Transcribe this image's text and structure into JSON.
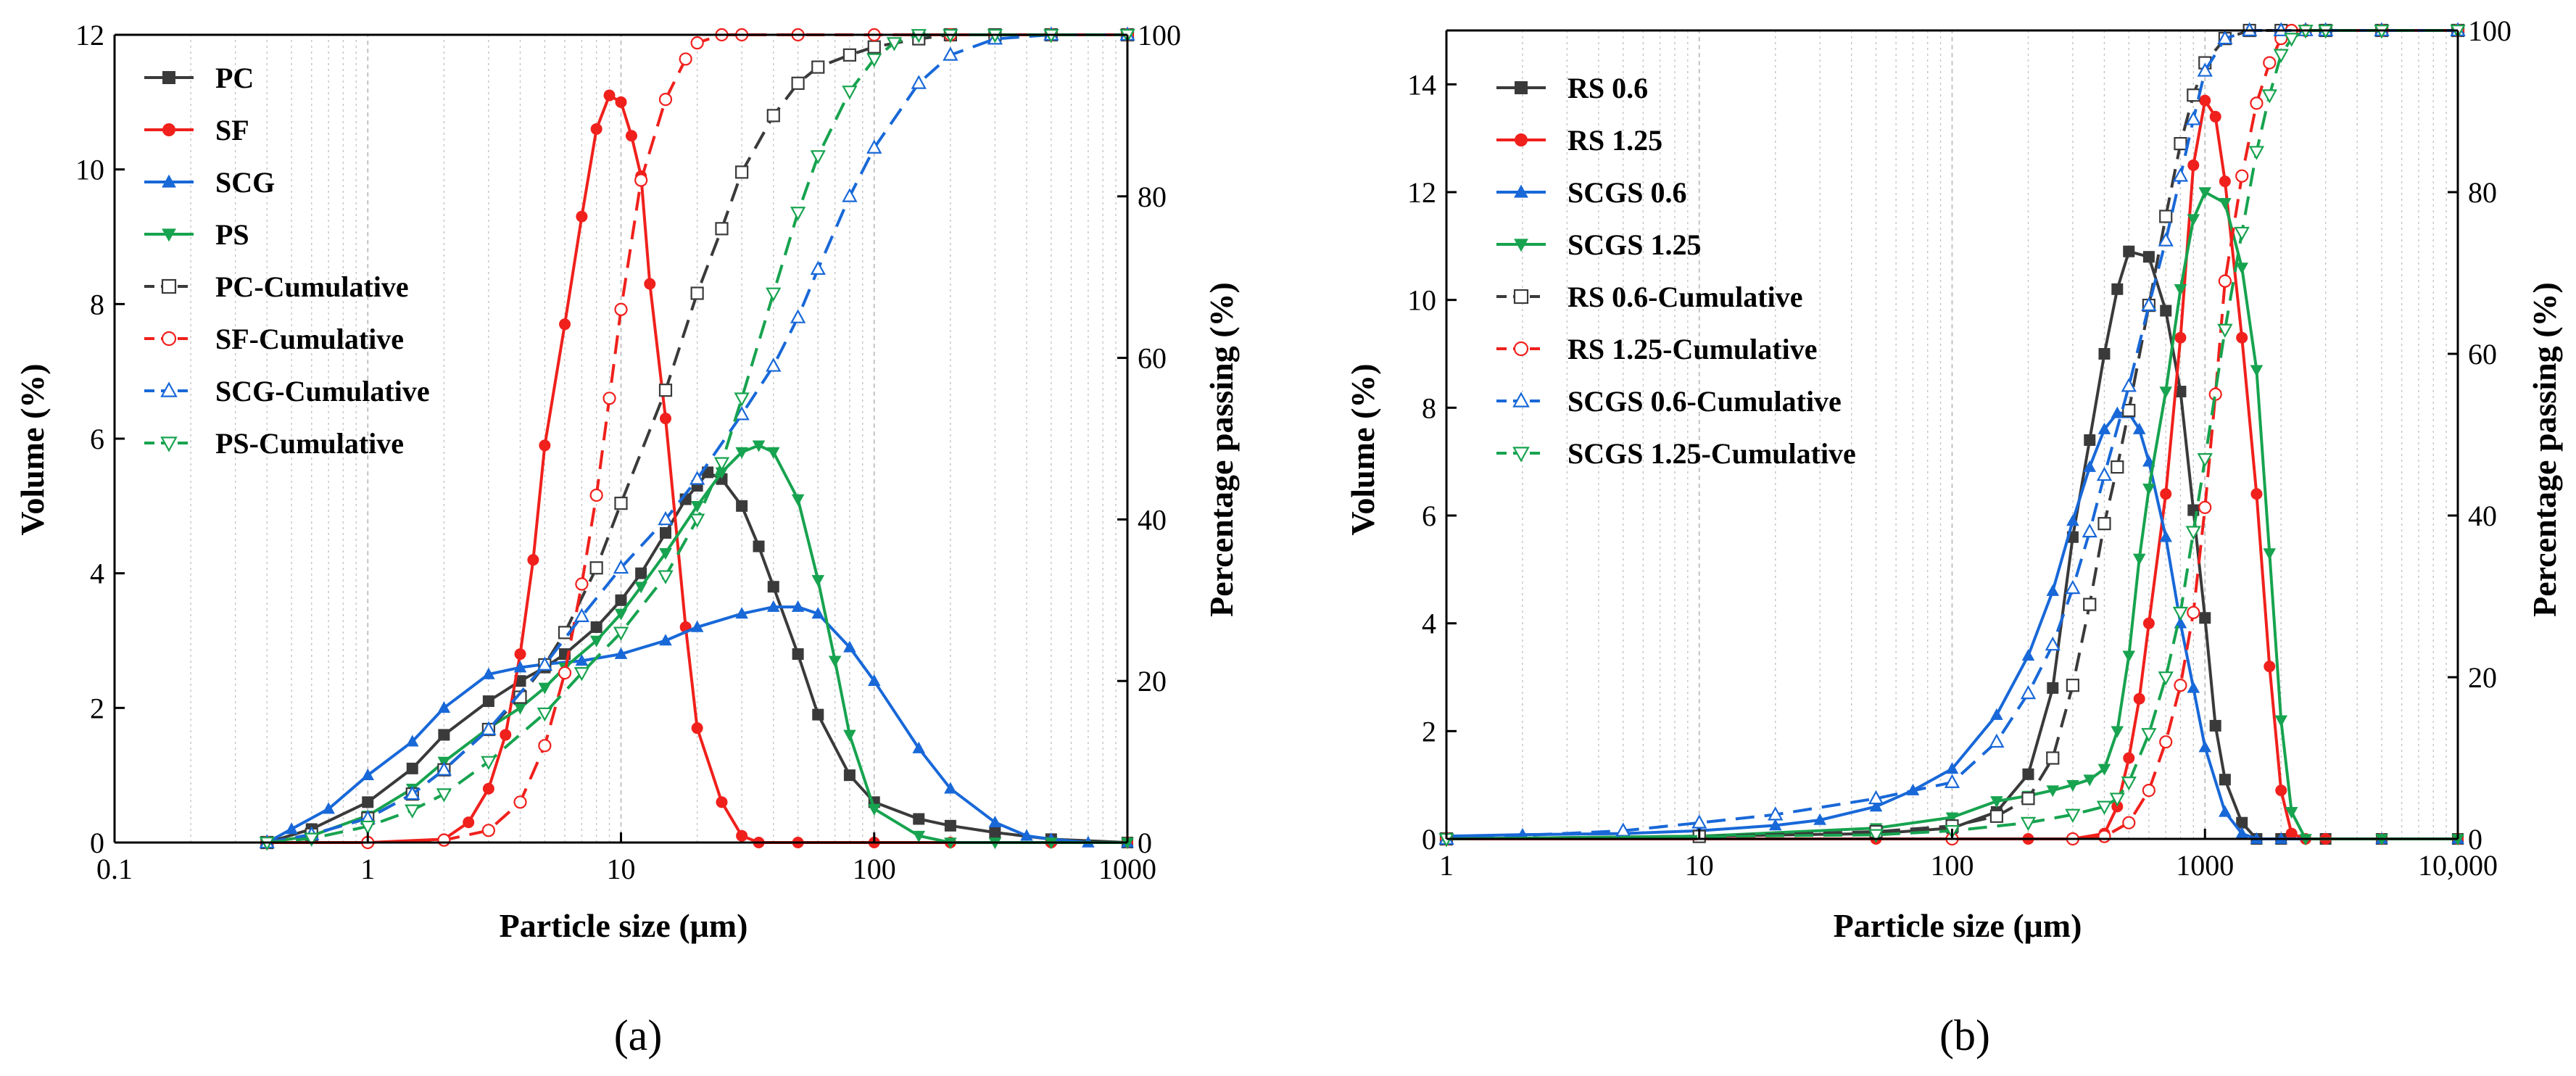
{
  "colors": {
    "PC": "#3a3a3a",
    "SF": "#f0201c",
    "SCG": "#1868d8",
    "PS": "#17a34f",
    "RS0.6": "#3a3a3a",
    "RS1.25": "#f0201c",
    "SCGS0.6": "#1868d8",
    "SCGS1.25": "#17a34f",
    "grid": "#c4c4c4",
    "axis": "#000000"
  },
  "chart_data": [
    {
      "type": "line",
      "panel_label": "(a)",
      "xlabel": "Particle size (μm)",
      "ylabel": "Volume (%)",
      "y2label": "Percentage passing (%)",
      "xscale": "log",
      "xlim": [
        0.1,
        1000
      ],
      "ylim": [
        0,
        12
      ],
      "y2lim": [
        0,
        100
      ],
      "xticks": [
        "0.1",
        "1",
        "10",
        "100",
        "1000"
      ],
      "yticks": [
        "0",
        "2",
        "4",
        "6",
        "8",
        "10",
        "12"
      ],
      "y2ticks": [
        "0",
        "20",
        "40",
        "60",
        "80",
        "100"
      ],
      "grid": "vertical minor dotted",
      "legend_position": "top-left",
      "series": [
        {
          "name": "PC",
          "axis": "left",
          "marker": "square",
          "filled": true,
          "dashed": false,
          "color": "PC",
          "x": [
            0.4,
            0.6,
            1,
            1.5,
            2,
            3,
            4,
            5,
            6,
            8,
            10,
            12,
            15,
            18,
            20,
            22,
            25,
            30,
            35,
            40,
            50,
            60,
            80,
            100,
            150,
            200,
            300,
            500,
            1000
          ],
          "y": [
            0.0,
            0.2,
            0.6,
            1.1,
            1.6,
            2.1,
            2.4,
            2.6,
            2.8,
            3.2,
            3.6,
            4.0,
            4.6,
            5.1,
            5.3,
            5.5,
            5.4,
            5.0,
            4.4,
            3.8,
            2.8,
            1.9,
            1.0,
            0.6,
            0.35,
            0.25,
            0.15,
            0.05,
            0.0
          ]
        },
        {
          "name": "SF",
          "axis": "left",
          "marker": "circle",
          "filled": true,
          "dashed": false,
          "color": "SF",
          "x": [
            0.4,
            1,
            2,
            2.5,
            3,
            3.5,
            4,
            4.5,
            5,
            6,
            7,
            8,
            9,
            10,
            11,
            12,
            13,
            15,
            18,
            20,
            25,
            30,
            35,
            50,
            100,
            200,
            500,
            1000
          ],
          "y": [
            0.0,
            0.0,
            0.05,
            0.3,
            0.8,
            1.6,
            2.8,
            4.2,
            5.9,
            7.7,
            9.3,
            10.6,
            11.1,
            11.0,
            10.5,
            9.9,
            8.3,
            6.3,
            3.2,
            1.7,
            0.6,
            0.1,
            0.0,
            0.0,
            0.0,
            0.0,
            0.0,
            0.0
          ]
        },
        {
          "name": "SCG",
          "axis": "left",
          "marker": "triangle-up",
          "filled": true,
          "dashed": false,
          "color": "SCG",
          "x": [
            0.4,
            0.5,
            0.7,
            1,
            1.5,
            2,
            3,
            4,
            5,
            7,
            10,
            15,
            20,
            30,
            40,
            50,
            60,
            80,
            100,
            150,
            200,
            300,
            400,
            500,
            700,
            1000
          ],
          "y": [
            0.0,
            0.2,
            0.5,
            1.0,
            1.5,
            2.0,
            2.5,
            2.6,
            2.65,
            2.7,
            2.8,
            3.0,
            3.2,
            3.4,
            3.5,
            3.5,
            3.4,
            2.9,
            2.4,
            1.4,
            0.8,
            0.3,
            0.1,
            0.05,
            0.0,
            0.0
          ]
        },
        {
          "name": "PS",
          "axis": "left",
          "marker": "triangle-down",
          "filled": true,
          "dashed": false,
          "color": "PS",
          "x": [
            0.4,
            0.6,
            1,
            1.5,
            2,
            3,
            4,
            5,
            6,
            8,
            10,
            12,
            15,
            20,
            25,
            30,
            35,
            40,
            50,
            60,
            70,
            80,
            100,
            150,
            200,
            300,
            500,
            1000
          ],
          "y": [
            0.0,
            0.1,
            0.4,
            0.8,
            1.2,
            1.7,
            2.0,
            2.3,
            2.6,
            3.0,
            3.4,
            3.8,
            4.3,
            5.0,
            5.5,
            5.8,
            5.9,
            5.8,
            5.1,
            3.9,
            2.7,
            1.6,
            0.5,
            0.1,
            0.0,
            0.0,
            0.0,
            0.0
          ]
        },
        {
          "name": "PC-Cumulative",
          "axis": "right",
          "marker": "square",
          "filled": false,
          "dashed": true,
          "color": "PC",
          "x": [
            0.4,
            0.6,
            1,
            1.5,
            2,
            3,
            4,
            5,
            6,
            8,
            10,
            15,
            20,
            25,
            30,
            40,
            50,
            60,
            80,
            100,
            150,
            200,
            300,
            500,
            1000
          ],
          "y": [
            0,
            1,
            3,
            6,
            9,
            14,
            18,
            22,
            26,
            34,
            42,
            56,
            68,
            76,
            83,
            90,
            94,
            96,
            97.5,
            98.5,
            99.5,
            100,
            100,
            100,
            100
          ]
        },
        {
          "name": "SF-Cumulative",
          "axis": "right",
          "marker": "circle",
          "filled": false,
          "dashed": true,
          "color": "SF",
          "x": [
            0.4,
            1,
            2,
            3,
            4,
            5,
            6,
            7,
            8,
            9,
            10,
            12,
            15,
            18,
            20,
            25,
            30,
            50,
            100,
            200,
            500,
            1000
          ],
          "y": [
            0,
            0,
            0.3,
            1.5,
            5,
            12,
            21,
            32,
            43,
            55,
            66,
            82,
            92,
            97,
            99,
            100,
            100,
            100,
            100,
            100,
            100,
            100
          ]
        },
        {
          "name": "SCG-Cumulative",
          "axis": "right",
          "marker": "triangle-up",
          "filled": false,
          "dashed": true,
          "color": "SCG",
          "x": [
            0.4,
            0.6,
            1,
            1.5,
            2,
            3,
            5,
            7,
            10,
            15,
            20,
            30,
            40,
            50,
            60,
            80,
            100,
            150,
            200,
            300,
            500,
            1000
          ],
          "y": [
            0,
            1,
            3,
            6,
            9,
            14,
            22,
            28,
            34,
            40,
            45,
            53,
            59,
            65,
            71,
            80,
            86,
            94,
            97.5,
            99.5,
            100,
            100
          ]
        },
        {
          "name": "PS-Cumulative",
          "axis": "right",
          "marker": "triangle-down",
          "filled": false,
          "dashed": true,
          "color": "PS",
          "x": [
            0.4,
            0.6,
            1,
            1.5,
            2,
            3,
            5,
            7,
            10,
            15,
            20,
            25,
            30,
            40,
            50,
            60,
            80,
            100,
            120,
            150,
            200,
            300,
            500,
            1000
          ],
          "y": [
            0,
            0.5,
            2,
            4,
            6,
            10,
            16,
            21,
            26,
            33,
            40,
            47,
            55,
            68,
            78,
            85,
            93,
            97,
            99,
            100,
            100,
            100,
            100,
            100
          ]
        }
      ]
    },
    {
      "type": "line",
      "panel_label": "(b)",
      "xlabel": "Particle size (μm)",
      "ylabel": "Volume (%)",
      "y2label": "Percentage passing (%)",
      "xscale": "log",
      "xlim": [
        1,
        10000
      ],
      "ylim": [
        0,
        15
      ],
      "y2lim": [
        0,
        100
      ],
      "xticks": [
        "1",
        "10",
        "100",
        "1000",
        "10,000"
      ],
      "yticks": [
        "0",
        "2",
        "4",
        "6",
        "8",
        "10",
        "12",
        "14"
      ],
      "y2ticks": [
        "0",
        "20",
        "40",
        "60",
        "80",
        "100"
      ],
      "grid": "vertical minor dotted",
      "legend_position": "top-left",
      "series": [
        {
          "name": "RS 0.6",
          "axis": "left",
          "marker": "square",
          "filled": true,
          "dashed": false,
          "color": "RS0.6",
          "x": [
            1,
            10,
            50,
            100,
            150,
            200,
            250,
            300,
            350,
            400,
            450,
            500,
            600,
            700,
            800,
            900,
            1000,
            1100,
            1200,
            1400,
            1600,
            2000,
            3000,
            5000,
            10000
          ],
          "y": [
            0.0,
            0.05,
            0.1,
            0.2,
            0.5,
            1.2,
            2.8,
            5.6,
            7.4,
            9.0,
            10.2,
            10.9,
            10.8,
            9.8,
            8.3,
            6.1,
            4.1,
            2.1,
            1.1,
            0.3,
            0.0,
            0.0,
            0.0,
            0.0,
            0.0
          ]
        },
        {
          "name": "RS 1.25",
          "axis": "left",
          "marker": "circle",
          "filled": true,
          "dashed": false,
          "color": "RS1.25",
          "x": [
            1,
            50,
            100,
            200,
            300,
            400,
            450,
            500,
            550,
            600,
            700,
            800,
            900,
            1000,
            1100,
            1200,
            1400,
            1600,
            1800,
            2000,
            2200,
            2500,
            3000,
            5000,
            10000
          ],
          "y": [
            0.0,
            0.0,
            0.0,
            0.0,
            0.0,
            0.1,
            0.6,
            1.5,
            2.6,
            4.0,
            6.4,
            9.3,
            12.5,
            13.7,
            13.4,
            12.2,
            9.3,
            6.4,
            3.2,
            0.9,
            0.1,
            0.0,
            0.0,
            0.0,
            0.0
          ]
        },
        {
          "name": "SCGS 0.6",
          "axis": "left",
          "marker": "triangle-up",
          "filled": true,
          "dashed": false,
          "color": "SCGS0.6",
          "x": [
            1,
            2,
            5,
            10,
            20,
            30,
            50,
            70,
            100,
            150,
            200,
            250,
            300,
            350,
            400,
            450,
            500,
            550,
            600,
            700,
            800,
            900,
            1000,
            1200,
            1400,
            1600,
            2000,
            5000,
            10000
          ],
          "y": [
            0.05,
            0.08,
            0.1,
            0.15,
            0.25,
            0.35,
            0.6,
            0.9,
            1.3,
            2.3,
            3.4,
            4.6,
            5.9,
            6.9,
            7.6,
            7.9,
            7.9,
            7.6,
            7.0,
            5.6,
            4.0,
            2.8,
            1.7,
            0.5,
            0.1,
            0.0,
            0.0,
            0.0,
            0.0
          ]
        },
        {
          "name": "SCGS 1.25",
          "axis": "left",
          "marker": "triangle-down",
          "filled": true,
          "dashed": false,
          "color": "SCGS1.25",
          "x": [
            1,
            10,
            50,
            100,
            150,
            200,
            250,
            300,
            350,
            400,
            450,
            500,
            550,
            600,
            700,
            800,
            900,
            1000,
            1200,
            1400,
            1600,
            1800,
            2000,
            2200,
            2500,
            5000,
            10000
          ],
          "y": [
            0.0,
            0.05,
            0.2,
            0.4,
            0.7,
            0.8,
            0.9,
            1.0,
            1.1,
            1.3,
            2.0,
            3.4,
            5.2,
            6.5,
            8.3,
            10.2,
            11.5,
            12.0,
            11.8,
            10.6,
            8.7,
            5.3,
            2.2,
            0.5,
            0.0,
            0.0,
            0.0
          ]
        },
        {
          "name": "RS 0.6-Cumulative",
          "axis": "right",
          "marker": "square",
          "filled": false,
          "dashed": true,
          "color": "RS0.6",
          "x": [
            1,
            10,
            50,
            100,
            150,
            200,
            250,
            300,
            350,
            400,
            450,
            500,
            600,
            700,
            800,
            900,
            1000,
            1200,
            1500,
            2000,
            3000,
            5000,
            10000
          ],
          "y": [
            0,
            0.3,
            0.9,
            1.6,
            2.8,
            5,
            10,
            19,
            29,
            39,
            46,
            53,
            66,
            77,
            86,
            92,
            96,
            99,
            100,
            100,
            100,
            100,
            100
          ]
        },
        {
          "name": "RS 1.25-Cumulative",
          "axis": "right",
          "marker": "circle",
          "filled": false,
          "dashed": true,
          "color": "RS1.25",
          "x": [
            1,
            100,
            300,
            400,
            500,
            600,
            700,
            800,
            900,
            1000,
            1100,
            1200,
            1400,
            1600,
            1800,
            2000,
            2200,
            2500,
            5000,
            10000
          ],
          "y": [
            0,
            0,
            0,
            0.3,
            2,
            6,
            12,
            19,
            28,
            41,
            55,
            69,
            82,
            91,
            96,
            99,
            100,
            100,
            100,
            100
          ]
        },
        {
          "name": "SCGS 0.6-Cumulative",
          "axis": "right",
          "marker": "triangle-up",
          "filled": false,
          "dashed": true,
          "color": "SCGS0.6",
          "x": [
            1,
            5,
            10,
            20,
            50,
            100,
            150,
            200,
            250,
            300,
            350,
            400,
            500,
            600,
            700,
            800,
            900,
            1000,
            1200,
            1500,
            2000,
            2500,
            3000,
            5000,
            10000
          ],
          "y": [
            0,
            1,
            2,
            3,
            5,
            7,
            12,
            18,
            24,
            31,
            38,
            45,
            56,
            66,
            74,
            82,
            89,
            95,
            99,
            100,
            100,
            100,
            100,
            100,
            100
          ]
        },
        {
          "name": "SCGS 1.25-Cumulative",
          "axis": "right",
          "marker": "triangle-down",
          "filled": false,
          "dashed": true,
          "color": "SCGS1.25",
          "x": [
            1,
            50,
            100,
            200,
            300,
            400,
            450,
            500,
            600,
            700,
            800,
            900,
            1000,
            1200,
            1400,
            1600,
            1800,
            2000,
            2200,
            2500,
            3000,
            5000,
            10000
          ],
          "y": [
            0,
            0.5,
            1,
            2,
            3,
            4,
            5,
            7,
            13,
            20,
            28,
            38,
            47,
            63,
            75,
            85,
            92,
            97,
            99,
            100,
            100,
            100,
            100
          ]
        }
      ]
    }
  ]
}
